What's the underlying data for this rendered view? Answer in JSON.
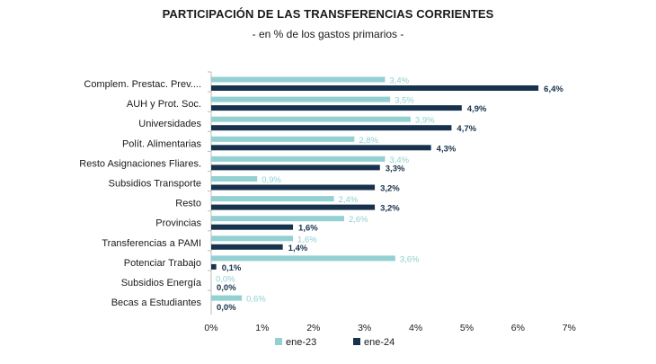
{
  "title": "PARTICIPACIÓN DE LAS TRANSFERENCIAS CORRIENTES",
  "subtitle": "- en % de los gastos primarios -",
  "colors": {
    "ene23": "#93d0d2",
    "ene24": "#17324d"
  },
  "chart_data": {
    "type": "bar",
    "orientation": "horizontal",
    "categories": [
      "Complem. Prestac. Prev....",
      "AUH y Prot. Soc.",
      "Universidades",
      "Polít. Alimentarias",
      "Resto Asignaciones Fliares.",
      "Subsidios Transporte",
      "Resto",
      "Provincias",
      "Transferencias a PAMI",
      "Potenciar Trabajo",
      "Subsidios Energía",
      "Becas a Estudiantes"
    ],
    "series": [
      {
        "name": "ene-23",
        "values": [
          3.4,
          3.5,
          3.9,
          2.8,
          3.4,
          0.9,
          2.4,
          2.6,
          1.6,
          3.6,
          0.0,
          0.6
        ],
        "labels": [
          "3,4%",
          "3,5%",
          "3,9%",
          "2,8%",
          "3,4%",
          "0,9%",
          "2,4%",
          "2,6%",
          "1,6%",
          "3,6%",
          "0,0%",
          "0,6%"
        ]
      },
      {
        "name": "ene-24",
        "values": [
          6.4,
          4.9,
          4.7,
          4.3,
          3.3,
          3.2,
          3.2,
          1.6,
          1.4,
          0.1,
          0.0,
          0.0
        ],
        "labels": [
          "6,4%",
          "4,9%",
          "4,7%",
          "4,3%",
          "3,3%",
          "3,2%",
          "3,2%",
          "1,6%",
          "1,4%",
          "0,1%",
          "0,0%",
          "0,0%"
        ]
      }
    ],
    "xlim": [
      0,
      7
    ],
    "xticks": [
      "0%",
      "1%",
      "2%",
      "3%",
      "4%",
      "5%",
      "6%",
      "7%"
    ],
    "legend_position": "bottom",
    "grid": false
  }
}
